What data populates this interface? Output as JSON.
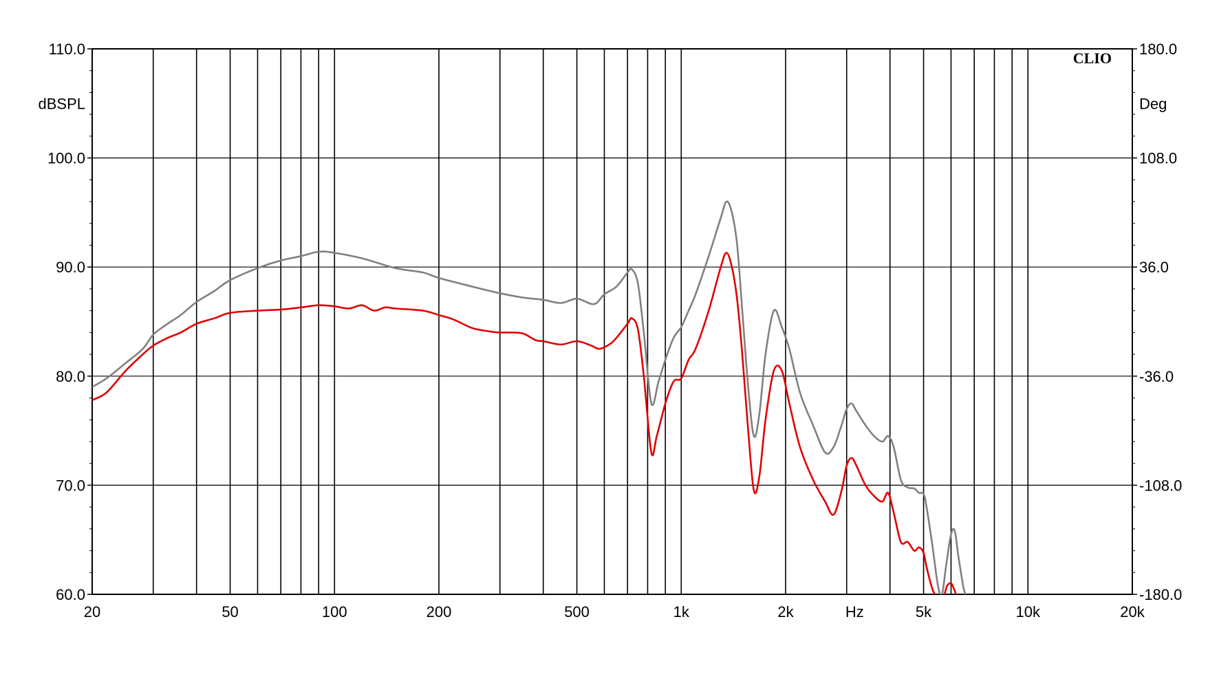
{
  "chart_data": {
    "type": "line",
    "brand": "CLIO",
    "x_scale": "log",
    "xlim": [
      20,
      20000
    ],
    "x_tick_labels": [
      {
        "value": 20,
        "label": "20"
      },
      {
        "value": 50,
        "label": "50"
      },
      {
        "value": 100,
        "label": "100"
      },
      {
        "value": 200,
        "label": "200"
      },
      {
        "value": 500,
        "label": "500"
      },
      {
        "value": 1000,
        "label": "1k"
      },
      {
        "value": 2000,
        "label": "2k"
      },
      {
        "value": 5000,
        "label": "5k"
      },
      {
        "value": 10000,
        "label": "10k"
      },
      {
        "value": 20000,
        "label": "20k"
      }
    ],
    "x_unit_label": "Hz",
    "x_unit_at": 3162,
    "y_left": {
      "label": "dBSPL",
      "range": [
        60,
        110
      ],
      "ticks": [
        "60.0",
        "70.0",
        "80.0",
        "90.0",
        "100.0",
        "110.0"
      ]
    },
    "y_right": {
      "label": "Deg",
      "range": [
        -180,
        180
      ],
      "ticks": [
        "-180.0",
        "-108.0",
        "-36.0",
        "36.0",
        "108.0",
        "180.0"
      ]
    },
    "grid": true,
    "colors": {
      "series_gray": "#808080",
      "series_red": "#e00000",
      "grid": "#000000"
    },
    "series": [
      {
        "color": "#808080",
        "points": [
          [
            20,
            79.0
          ],
          [
            22,
            79.8
          ],
          [
            25,
            81.2
          ],
          [
            28,
            82.5
          ],
          [
            30,
            83.8
          ],
          [
            33,
            84.8
          ],
          [
            36,
            85.6
          ],
          [
            40,
            86.8
          ],
          [
            45,
            87.8
          ],
          [
            50,
            88.8
          ],
          [
            60,
            89.9
          ],
          [
            70,
            90.6
          ],
          [
            80,
            91.0
          ],
          [
            90,
            91.4
          ],
          [
            100,
            91.3
          ],
          [
            120,
            90.8
          ],
          [
            150,
            89.9
          ],
          [
            180,
            89.5
          ],
          [
            200,
            89.0
          ],
          [
            250,
            88.2
          ],
          [
            300,
            87.6
          ],
          [
            350,
            87.2
          ],
          [
            400,
            87.0
          ],
          [
            450,
            86.7
          ],
          [
            500,
            87.1
          ],
          [
            560,
            86.6
          ],
          [
            600,
            87.5
          ],
          [
            650,
            88.2
          ],
          [
            700,
            89.5
          ],
          [
            720,
            89.8
          ],
          [
            750,
            88.5
          ],
          [
            780,
            84.0
          ],
          [
            820,
            77.5
          ],
          [
            860,
            79.5
          ],
          [
            900,
            81.5
          ],
          [
            950,
            83.5
          ],
          [
            1000,
            84.5
          ],
          [
            1050,
            86.0
          ],
          [
            1100,
            87.5
          ],
          [
            1200,
            91.0
          ],
          [
            1300,
            94.5
          ],
          [
            1350,
            96.0
          ],
          [
            1400,
            95.0
          ],
          [
            1450,
            92.0
          ],
          [
            1500,
            86.0
          ],
          [
            1560,
            79.0
          ],
          [
            1620,
            74.5
          ],
          [
            1680,
            76.5
          ],
          [
            1750,
            82.0
          ],
          [
            1850,
            86.0
          ],
          [
            1950,
            84.5
          ],
          [
            2050,
            82.5
          ],
          [
            2200,
            78.5
          ],
          [
            2400,
            75.5
          ],
          [
            2600,
            73.0
          ],
          [
            2750,
            73.5
          ],
          [
            2900,
            75.5
          ],
          [
            3000,
            77.0
          ],
          [
            3100,
            77.5
          ],
          [
            3200,
            76.8
          ],
          [
            3400,
            75.5
          ],
          [
            3600,
            74.5
          ],
          [
            3800,
            74.0
          ],
          [
            3950,
            74.5
          ],
          [
            4100,
            73.5
          ],
          [
            4300,
            70.5
          ],
          [
            4500,
            69.8
          ],
          [
            4700,
            69.7
          ],
          [
            4850,
            69.3
          ],
          [
            5000,
            69.2
          ],
          [
            5100,
            68.0
          ],
          [
            5300,
            64.5
          ],
          [
            5500,
            60.8
          ],
          [
            5650,
            60.0
          ],
          [
            5800,
            62.5
          ],
          [
            6000,
            65.5
          ],
          [
            6150,
            65.8
          ],
          [
            6300,
            63.5
          ],
          [
            6500,
            60.8
          ],
          [
            6600,
            60.0
          ]
        ]
      },
      {
        "color": "#e00000",
        "points": [
          [
            20,
            77.8
          ],
          [
            22,
            78.5
          ],
          [
            25,
            80.5
          ],
          [
            28,
            82.0
          ],
          [
            30,
            82.8
          ],
          [
            33,
            83.5
          ],
          [
            36,
            84.0
          ],
          [
            40,
            84.8
          ],
          [
            45,
            85.3
          ],
          [
            50,
            85.8
          ],
          [
            60,
            86.0
          ],
          [
            70,
            86.1
          ],
          [
            80,
            86.3
          ],
          [
            90,
            86.5
          ],
          [
            100,
            86.4
          ],
          [
            110,
            86.2
          ],
          [
            120,
            86.5
          ],
          [
            130,
            86.0
          ],
          [
            140,
            86.3
          ],
          [
            150,
            86.2
          ],
          [
            180,
            86.0
          ],
          [
            200,
            85.6
          ],
          [
            220,
            85.2
          ],
          [
            250,
            84.4
          ],
          [
            280,
            84.1
          ],
          [
            300,
            84.0
          ],
          [
            320,
            84.0
          ],
          [
            350,
            83.9
          ],
          [
            380,
            83.3
          ],
          [
            400,
            83.2
          ],
          [
            450,
            82.9
          ],
          [
            500,
            83.2
          ],
          [
            550,
            82.8
          ],
          [
            580,
            82.5
          ],
          [
            620,
            82.9
          ],
          [
            650,
            83.5
          ],
          [
            700,
            84.8
          ],
          [
            720,
            85.3
          ],
          [
            750,
            84.3
          ],
          [
            780,
            80.0
          ],
          [
            820,
            73.0
          ],
          [
            850,
            74.5
          ],
          [
            900,
            77.5
          ],
          [
            950,
            79.5
          ],
          [
            1000,
            79.8
          ],
          [
            1050,
            81.5
          ],
          [
            1100,
            82.5
          ],
          [
            1200,
            86.0
          ],
          [
            1300,
            90.0
          ],
          [
            1350,
            91.3
          ],
          [
            1400,
            90.0
          ],
          [
            1450,
            87.0
          ],
          [
            1500,
            82.0
          ],
          [
            1560,
            75.0
          ],
          [
            1620,
            69.5
          ],
          [
            1680,
            70.8
          ],
          [
            1750,
            76.0
          ],
          [
            1850,
            80.5
          ],
          [
            1950,
            80.5
          ],
          [
            2050,
            77.5
          ],
          [
            2200,
            73.5
          ],
          [
            2400,
            70.5
          ],
          [
            2600,
            68.5
          ],
          [
            2750,
            67.3
          ],
          [
            2900,
            69.5
          ],
          [
            3000,
            71.8
          ],
          [
            3100,
            72.5
          ],
          [
            3200,
            71.8
          ],
          [
            3400,
            70.0
          ],
          [
            3600,
            69.0
          ],
          [
            3800,
            68.5
          ],
          [
            3950,
            69.3
          ],
          [
            4100,
            67.5
          ],
          [
            4300,
            64.8
          ],
          [
            4500,
            64.8
          ],
          [
            4700,
            64.0
          ],
          [
            4850,
            64.3
          ],
          [
            5000,
            63.8
          ],
          [
            5100,
            62.5
          ],
          [
            5300,
            60.5
          ],
          [
            5400,
            60.0
          ]
        ]
      },
      {
        "color": "#e00000",
        "points": [
          [
            5750,
            60.0
          ],
          [
            5850,
            60.8
          ],
          [
            6000,
            61.0
          ],
          [
            6100,
            60.6
          ],
          [
            6200,
            60.0
          ]
        ]
      }
    ]
  }
}
